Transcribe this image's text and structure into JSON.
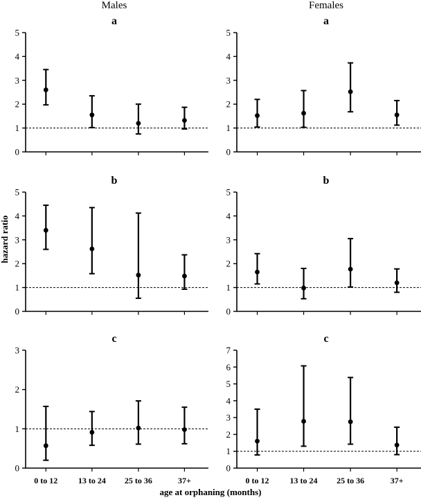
{
  "col_titles": [
    "Males",
    "Females"
  ],
  "xlabel": "age at orphaning (months)",
  "ylabel": "hazard ratio",
  "chart_data": [
    {
      "type": "scatter",
      "column": "Males",
      "panel_label": "a",
      "categories": [
        "0 to 12",
        "13 to 24",
        "25 to 36",
        "37+"
      ],
      "values": [
        2.6,
        1.55,
        1.2,
        1.32
      ],
      "ci_low": [
        1.97,
        1.02,
        0.75,
        0.96
      ],
      "ci_high": [
        3.45,
        2.35,
        2.0,
        1.87
      ],
      "reference_line": 1,
      "ylim": [
        0,
        5
      ],
      "yticks": [
        0,
        1,
        2,
        3,
        4,
        5
      ],
      "show_xticks": false
    },
    {
      "type": "scatter",
      "column": "Females",
      "panel_label": "a",
      "categories": [
        "0 to 12",
        "13 to 24",
        "25 to 36",
        "37+"
      ],
      "values": [
        1.52,
        1.62,
        2.52,
        1.55
      ],
      "ci_low": [
        1.04,
        1.03,
        1.68,
        1.12
      ],
      "ci_high": [
        2.2,
        2.57,
        3.73,
        2.15
      ],
      "reference_line": 1,
      "ylim": [
        0,
        5
      ],
      "yticks": [
        0,
        1,
        2,
        3,
        4,
        5
      ],
      "show_xticks": false
    },
    {
      "type": "scatter",
      "column": "Males",
      "panel_label": "b",
      "categories": [
        "0 to 12",
        "13 to 24",
        "25 to 36",
        "37+"
      ],
      "values": [
        3.4,
        2.62,
        1.52,
        1.48
      ],
      "ci_low": [
        2.6,
        1.58,
        0.55,
        0.93
      ],
      "ci_high": [
        4.45,
        4.35,
        4.12,
        2.37
      ],
      "reference_line": 1,
      "ylim": [
        0,
        5
      ],
      "yticks": [
        0,
        1,
        2,
        3,
        4,
        5
      ],
      "show_xticks": false
    },
    {
      "type": "scatter",
      "column": "Females",
      "panel_label": "b",
      "categories": [
        "0 to 12",
        "13 to 24",
        "25 to 36",
        "37+"
      ],
      "values": [
        1.65,
        0.98,
        1.77,
        1.2
      ],
      "ci_low": [
        1.15,
        0.53,
        1.02,
        0.8
      ],
      "ci_high": [
        2.42,
        1.8,
        3.05,
        1.78
      ],
      "reference_line": 1,
      "ylim": [
        0,
        5
      ],
      "yticks": [
        0,
        1,
        2,
        3,
        4,
        5
      ],
      "show_xticks": false
    },
    {
      "type": "scatter",
      "column": "Males",
      "panel_label": "c",
      "categories": [
        "0 to 12",
        "13 to 24",
        "25 to 36",
        "37+"
      ],
      "values": [
        0.57,
        0.91,
        1.02,
        0.98
      ],
      "ci_low": [
        0.2,
        0.58,
        0.61,
        0.62
      ],
      "ci_high": [
        1.57,
        1.44,
        1.71,
        1.55
      ],
      "reference_line": 1,
      "ylim": [
        0,
        3
      ],
      "yticks": [
        0,
        1,
        2,
        3
      ],
      "show_xticks": true
    },
    {
      "type": "scatter",
      "column": "Females",
      "panel_label": "c",
      "categories": [
        "0 to 12",
        "13 to 24",
        "25 to 36",
        "37+"
      ],
      "values": [
        1.6,
        2.78,
        2.75,
        1.37
      ],
      "ci_low": [
        0.78,
        1.3,
        1.42,
        0.8
      ],
      "ci_high": [
        3.5,
        6.07,
        5.38,
        2.43
      ],
      "reference_line": 1,
      "ylim": [
        0,
        7
      ],
      "yticks": [
        0,
        1,
        2,
        3,
        4,
        5,
        6,
        7
      ],
      "show_xticks": true
    }
  ]
}
